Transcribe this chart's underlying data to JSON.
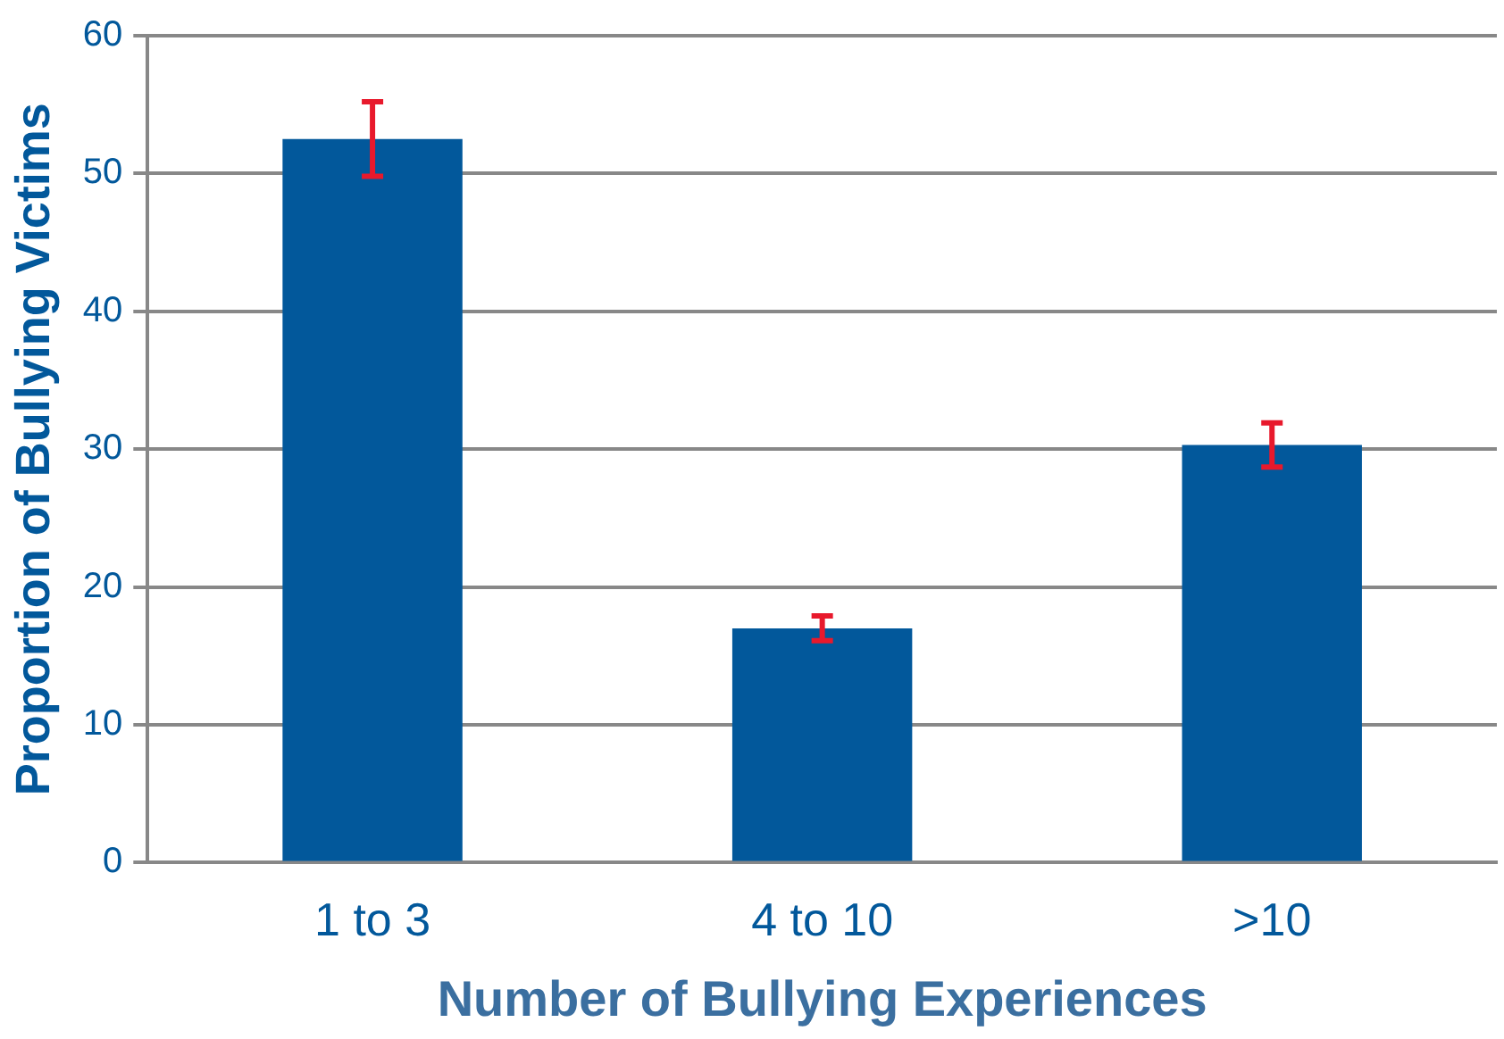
{
  "chart_data": {
    "type": "bar",
    "xlabel": "Number of Bullying Experiences",
    "ylabel": "Proportion of Bullying Victims",
    "categories": [
      "1 to 3",
      "4 to 10",
      ">10"
    ],
    "series": [
      {
        "color": "#02589b",
        "values": [
          52.5,
          17.0,
          30.3
        ],
        "errors": [
          2.7,
          0.9,
          1.6
        ]
      }
    ],
    "ylim": [
      0,
      60
    ],
    "yticks": [
      0,
      10,
      20,
      30,
      40,
      50,
      60
    ],
    "grid": "y",
    "legend": false
  }
}
